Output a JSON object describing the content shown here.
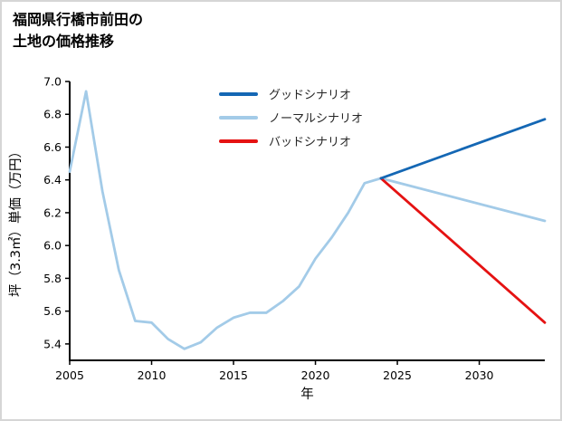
{
  "title": {
    "line1": "福岡県行橋市前田の",
    "line2": "土地の価格推移"
  },
  "chart_data": {
    "type": "line",
    "title": "福岡県行橋市前田の土地の価格推移",
    "xlabel": "年",
    "ylabel": "坪（3.3㎡）単価（万円）",
    "xlim": [
      2005,
      2034
    ],
    "ylim": [
      5.3,
      7.0
    ],
    "xticks": [
      2005,
      2010,
      2015,
      2020,
      2025,
      2030
    ],
    "yticks": [
      5.4,
      5.6,
      5.8,
      6.0,
      6.2,
      6.4,
      6.6,
      6.8,
      7.0
    ],
    "grid": false,
    "legend_position": "upper-center-inside",
    "series": [
      {
        "name": "グッドシナリオ",
        "color": "#1467b4",
        "x": [
          2024,
          2034
        ],
        "values": [
          6.41,
          6.77
        ]
      },
      {
        "name": "ノーマルシナリオ",
        "color": "#a3cbe8",
        "x": [
          2005,
          2006,
          2007,
          2008,
          2009,
          2010,
          2011,
          2012,
          2013,
          2014,
          2015,
          2016,
          2017,
          2018,
          2019,
          2020,
          2021,
          2022,
          2023,
          2024,
          2034
        ],
        "values": [
          6.45,
          6.94,
          6.33,
          5.85,
          5.54,
          5.53,
          5.43,
          5.37,
          5.41,
          5.5,
          5.56,
          5.59,
          5.59,
          5.66,
          5.75,
          5.92,
          6.05,
          6.2,
          6.38,
          6.41,
          6.15
        ]
      },
      {
        "name": "バッドシナリオ",
        "color": "#e51212",
        "x": [
          2024,
          2034
        ],
        "values": [
          6.41,
          5.53
        ]
      }
    ]
  }
}
